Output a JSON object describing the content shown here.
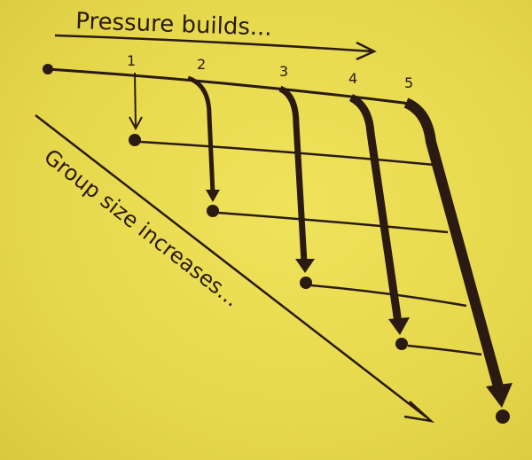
{
  "diagram": {
    "top_label": "Pressure builds...",
    "diagonal_label": "Group size increases...",
    "column_labels": [
      "1",
      "2",
      "3",
      "4",
      "5"
    ],
    "ink_color": "#2a1a12",
    "paper_color": "#e9dc52"
  }
}
